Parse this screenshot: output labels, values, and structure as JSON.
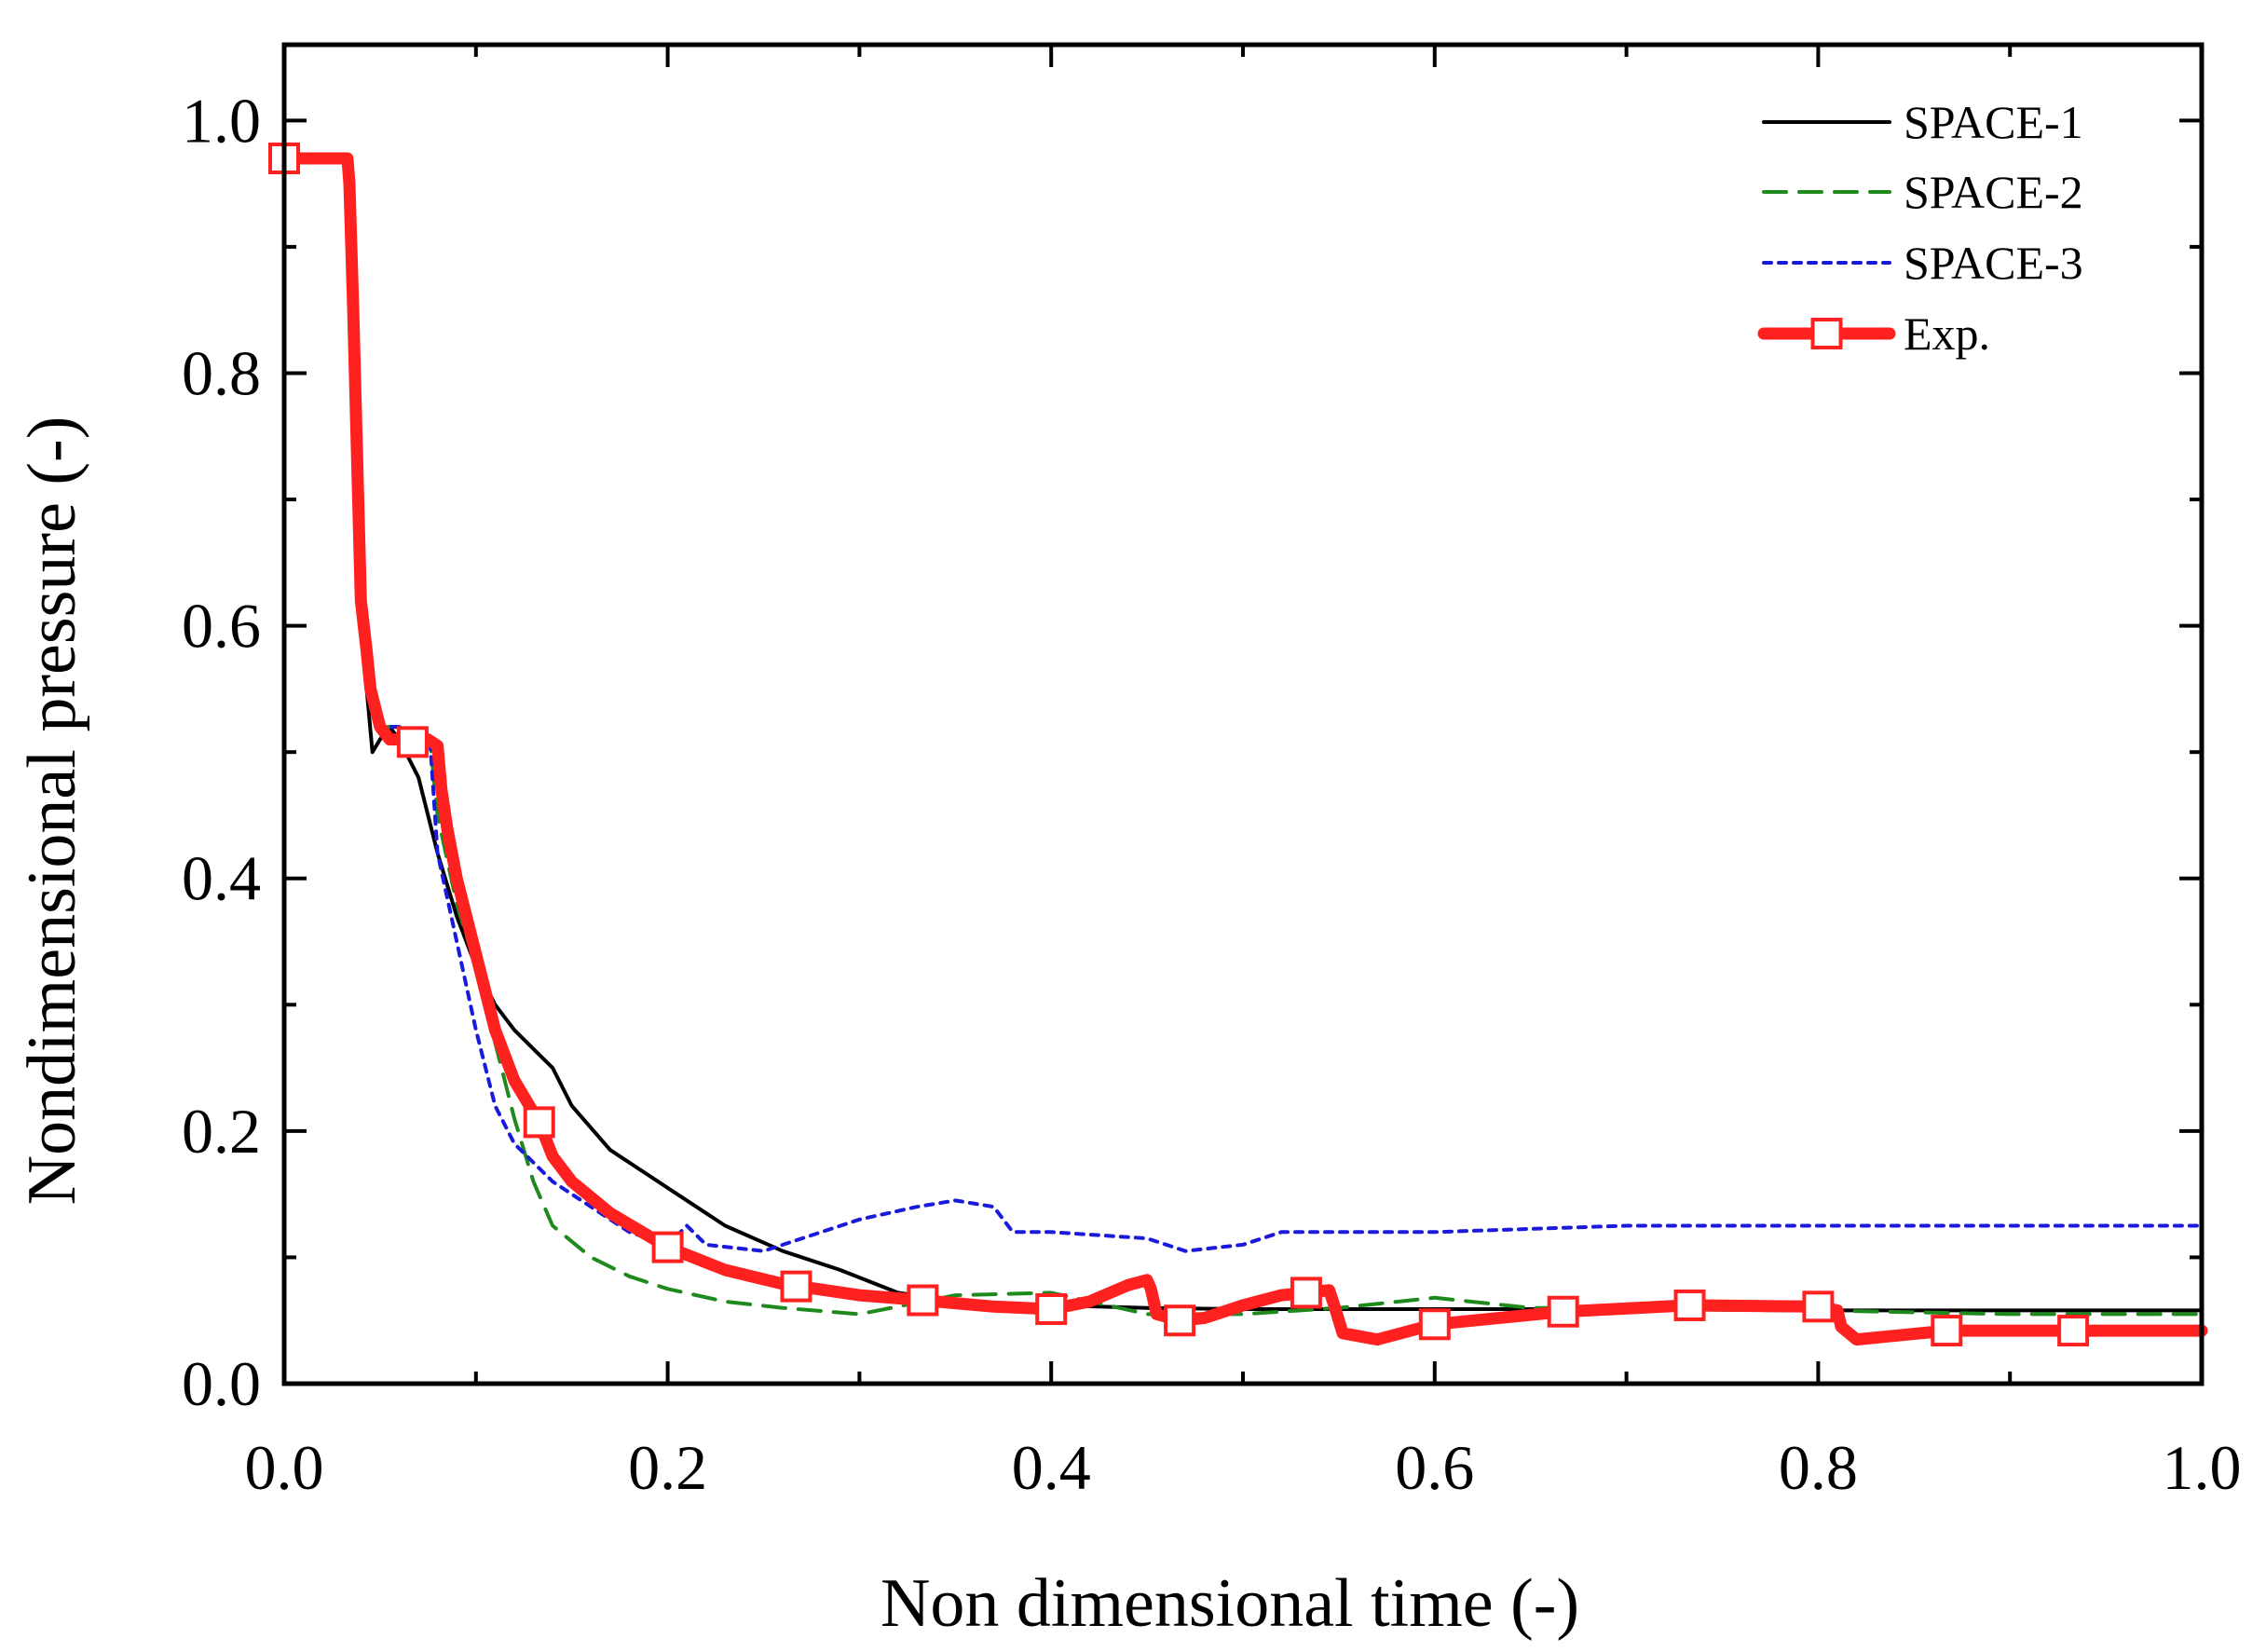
{
  "chart_data": {
    "type": "line",
    "title": "",
    "xlabel": "Non dimensional time (-)",
    "ylabel": "Nondimensional pressure (-)",
    "xlim": [
      0.0,
      1.0
    ],
    "ylim": [
      0.0,
      1.06
    ],
    "x_ticks": [
      "0.0",
      "0.2",
      "0.4",
      "0.6",
      "0.8",
      "1.0"
    ],
    "y_ticks": [
      "0.0",
      "0.2",
      "0.4",
      "0.6",
      "0.8",
      "1.0"
    ],
    "legend_position": "top-right",
    "series": [
      {
        "name": "SPACE-1",
        "color": "#000000",
        "style": "solid",
        "x": [
          0.0,
          0.03,
          0.035,
          0.04,
          0.043,
          0.046,
          0.05,
          0.055,
          0.06,
          0.07,
          0.08,
          0.09,
          0.1,
          0.11,
          0.12,
          0.13,
          0.14,
          0.15,
          0.17,
          0.2,
          0.23,
          0.26,
          0.29,
          0.32,
          0.35,
          0.4,
          0.45,
          0.5,
          0.6,
          0.7,
          0.8,
          0.9,
          1.0
        ],
        "y": [
          0.97,
          0.97,
          0.95,
          0.62,
          0.55,
          0.5,
          0.51,
          0.52,
          0.51,
          0.48,
          0.42,
          0.37,
          0.33,
          0.3,
          0.28,
          0.265,
          0.25,
          0.22,
          0.185,
          0.155,
          0.125,
          0.105,
          0.09,
          0.072,
          0.065,
          0.062,
          0.06,
          0.059,
          0.059,
          0.059,
          0.058,
          0.058,
          0.058
        ]
      },
      {
        "name": "SPACE-2",
        "color": "#1e8a1e",
        "style": "dashed",
        "x": [
          0.0,
          0.03,
          0.035,
          0.04,
          0.045,
          0.05,
          0.06,
          0.07,
          0.076,
          0.08,
          0.09,
          0.1,
          0.11,
          0.12,
          0.13,
          0.14,
          0.16,
          0.18,
          0.2,
          0.23,
          0.26,
          0.3,
          0.35,
          0.4,
          0.45,
          0.5,
          0.55,
          0.6,
          0.65,
          0.7,
          0.8,
          0.9,
          1.0
        ],
        "y": [
          0.97,
          0.97,
          0.95,
          0.62,
          0.55,
          0.52,
          0.52,
          0.51,
          0.51,
          0.45,
          0.38,
          0.33,
          0.27,
          0.21,
          0.16,
          0.125,
          0.1,
          0.085,
          0.075,
          0.065,
          0.06,
          0.055,
          0.07,
          0.072,
          0.055,
          0.055,
          0.06,
          0.068,
          0.06,
          0.06,
          0.058,
          0.055,
          0.055
        ]
      },
      {
        "name": "SPACE-3",
        "color": "#1a1adc",
        "style": "dotted",
        "x": [
          0.0,
          0.03,
          0.035,
          0.04,
          0.045,
          0.05,
          0.06,
          0.07,
          0.076,
          0.08,
          0.09,
          0.1,
          0.11,
          0.12,
          0.14,
          0.16,
          0.18,
          0.2,
          0.21,
          0.22,
          0.25,
          0.27,
          0.3,
          0.33,
          0.35,
          0.37,
          0.38,
          0.4,
          0.45,
          0.47,
          0.5,
          0.52,
          0.55,
          0.6,
          0.7,
          0.8,
          0.9,
          1.0
        ],
        "y": [
          0.97,
          0.97,
          0.95,
          0.62,
          0.55,
          0.52,
          0.52,
          0.51,
          0.51,
          0.42,
          0.35,
          0.28,
          0.22,
          0.19,
          0.16,
          0.14,
          0.12,
          0.11,
          0.125,
          0.11,
          0.105,
          0.115,
          0.13,
          0.14,
          0.145,
          0.14,
          0.12,
          0.12,
          0.115,
          0.105,
          0.11,
          0.12,
          0.12,
          0.12,
          0.125,
          0.125,
          0.125,
          0.125
        ]
      },
      {
        "name": "Exp.",
        "color": "#ff2020",
        "style": "solid-thick-square-markers",
        "x": [
          0.0,
          0.033,
          0.034,
          0.036,
          0.04,
          0.043,
          0.045,
          0.05,
          0.055,
          0.06,
          0.065,
          0.075,
          0.08,
          0.082,
          0.085,
          0.09,
          0.1,
          0.11,
          0.12,
          0.133,
          0.14,
          0.15,
          0.17,
          0.2,
          0.23,
          0.26,
          0.3,
          0.333,
          0.37,
          0.4,
          0.42,
          0.44,
          0.45,
          0.452,
          0.455,
          0.467,
          0.48,
          0.5,
          0.52,
          0.533,
          0.545,
          0.548,
          0.552,
          0.57,
          0.6,
          0.667,
          0.733,
          0.8,
          0.81,
          0.812,
          0.82,
          0.867,
          0.933,
          1.0
        ],
        "y": [
          0.97,
          0.97,
          0.95,
          0.85,
          0.62,
          0.58,
          0.55,
          0.52,
          0.51,
          0.51,
          0.508,
          0.51,
          0.505,
          0.47,
          0.44,
          0.4,
          0.34,
          0.28,
          0.24,
          0.207,
          0.18,
          0.16,
          0.135,
          0.108,
          0.09,
          0.079,
          0.07,
          0.066,
          0.061,
          0.059,
          0.065,
          0.078,
          0.082,
          0.075,
          0.055,
          0.05,
          0.052,
          0.062,
          0.07,
          0.072,
          0.074,
          0.06,
          0.04,
          0.035,
          0.047,
          0.057,
          0.062,
          0.061,
          0.058,
          0.045,
          0.035,
          0.042,
          0.042,
          0.042
        ],
        "markers_x": [
          0.0,
          0.067,
          0.133,
          0.2,
          0.267,
          0.333,
          0.4,
          0.467,
          0.533,
          0.6,
          0.667,
          0.733,
          0.8,
          0.867,
          0.933
        ],
        "markers_y": [
          0.97,
          0.508,
          0.207,
          0.108,
          0.077,
          0.066,
          0.059,
          0.05,
          0.072,
          0.047,
          0.057,
          0.062,
          0.061,
          0.042,
          0.042
        ]
      }
    ]
  }
}
